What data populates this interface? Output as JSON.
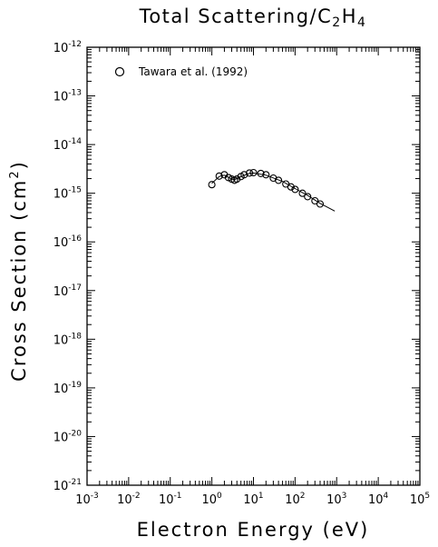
{
  "chart_data": {
    "type": "scatter",
    "title": "Total Scattering/C2H4",
    "title_parts": {
      "main": "Total Scattering/C",
      "sub1": "2",
      "mid": "H",
      "sub2": "4"
    },
    "xlabel": "Electron Energy (eV)",
    "ylabel": "Cross Section (cm",
    "ylabel_sup": "2",
    "ylabel_close": ")",
    "x_scale": "log",
    "y_scale": "log",
    "xlim": [
      0.001,
      100000
    ],
    "ylim": [
      1e-21,
      1e-12
    ],
    "x_ticks": [
      {
        "base": "10",
        "exp": "-3",
        "value": 0.001
      },
      {
        "base": "10",
        "exp": "-2",
        "value": 0.01
      },
      {
        "base": "10",
        "exp": "-1",
        "value": 0.1
      },
      {
        "base": "10",
        "exp": "0",
        "value": 1
      },
      {
        "base": "10",
        "exp": "1",
        "value": 10
      },
      {
        "base": "10",
        "exp": "2",
        "value": 100
      },
      {
        "base": "10",
        "exp": "3",
        "value": 1000
      },
      {
        "base": "10",
        "exp": "4",
        "value": 10000
      },
      {
        "base": "10",
        "exp": "5",
        "value": 100000
      }
    ],
    "y_ticks": [
      {
        "base": "10",
        "exp": "-12",
        "value": 1e-12
      },
      {
        "base": "10",
        "exp": "-13",
        "value": 1e-13
      },
      {
        "base": "10",
        "exp": "-14",
        "value": 1e-14
      },
      {
        "base": "10",
        "exp": "-15",
        "value": 1e-15
      },
      {
        "base": "10",
        "exp": "-16",
        "value": 1e-16
      },
      {
        "base": "10",
        "exp": "-17",
        "value": 1e-17
      },
      {
        "base": "10",
        "exp": "-18",
        "value": 1e-18
      },
      {
        "base": "10",
        "exp": "-19",
        "value": 1e-19
      },
      {
        "base": "10",
        "exp": "-20",
        "value": 1e-20
      },
      {
        "base": "10",
        "exp": "-21",
        "value": 1e-21
      }
    ],
    "legend": {
      "placement": "top-left",
      "entries": [
        {
          "label": "Tawara et al. (1992)",
          "marker": "open-circle"
        }
      ]
    },
    "series": [
      {
        "name": "Tawara et al. (1992)",
        "marker": "open-circle",
        "points": [
          {
            "x": 1.0,
            "y": 1.5e-15
          },
          {
            "x": 1.5,
            "y": 2.25e-15
          },
          {
            "x": 2.0,
            "y": 2.4e-15
          },
          {
            "x": 2.5,
            "y": 2.1e-15
          },
          {
            "x": 3.0,
            "y": 1.95e-15
          },
          {
            "x": 3.5,
            "y": 1.85e-15
          },
          {
            "x": 4.0,
            "y": 1.95e-15
          },
          {
            "x": 5.0,
            "y": 2.2e-15
          },
          {
            "x": 6.0,
            "y": 2.4e-15
          },
          {
            "x": 8.0,
            "y": 2.6e-15
          },
          {
            "x": 10,
            "y": 2.65e-15
          },
          {
            "x": 15,
            "y": 2.55e-15
          },
          {
            "x": 20,
            "y": 2.4e-15
          },
          {
            "x": 30,
            "y": 2.05e-15
          },
          {
            "x": 40,
            "y": 1.85e-15
          },
          {
            "x": 60,
            "y": 1.55e-15
          },
          {
            "x": 80,
            "y": 1.35e-15
          },
          {
            "x": 100,
            "y": 1.2e-15
          },
          {
            "x": 150,
            "y": 1e-15
          },
          {
            "x": 200,
            "y": 8.5e-16
          },
          {
            "x": 300,
            "y": 7e-16
          },
          {
            "x": 400,
            "y": 6e-16
          }
        ]
      },
      {
        "marker": "none",
        "line_style": "solid",
        "points": [
          {
            "x": 1.0,
            "y": 1.6e-15
          },
          {
            "x": 1.5,
            "y": 2.2e-15
          },
          {
            "x": 2.0,
            "y": 2.35e-15
          },
          {
            "x": 3.0,
            "y": 1.95e-15
          },
          {
            "x": 3.5,
            "y": 1.9e-15
          },
          {
            "x": 5.0,
            "y": 2.2e-15
          },
          {
            "x": 8.0,
            "y": 2.55e-15
          },
          {
            "x": 10,
            "y": 2.6e-15
          },
          {
            "x": 20,
            "y": 2.35e-15
          },
          {
            "x": 50,
            "y": 1.75e-15
          },
          {
            "x": 100,
            "y": 1.25e-15
          },
          {
            "x": 200,
            "y": 9e-16
          },
          {
            "x": 400,
            "y": 6.2e-16
          },
          {
            "x": 900,
            "y": 4.3e-16
          }
        ]
      }
    ],
    "grid": false,
    "frame_color": "#000000",
    "background": "#ffffff"
  }
}
